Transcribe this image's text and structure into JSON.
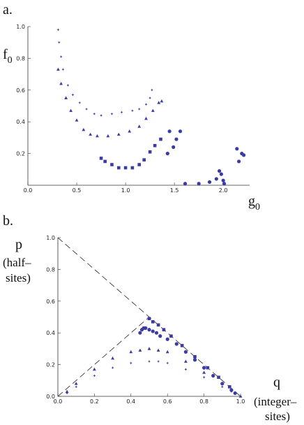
{
  "chart_data": [
    {
      "type": "scatter",
      "panel_label": "a.",
      "y_label": {
        "main": "f",
        "sub": "0"
      },
      "x_label": {
        "main": "g",
        "sub": "0"
      },
      "xlim": [
        0,
        2.27
      ],
      "ylim": [
        0,
        1.0
      ],
      "xticks": [
        {
          "value": 0,
          "label": "0.0"
        },
        0.5,
        {
          "value": 1,
          "label": "1.0"
        },
        1.5,
        {
          "value": 2,
          "label": "2.0"
        }
      ],
      "yticks": [
        0.2,
        0.4,
        0.6,
        0.8,
        {
          "value": 1,
          "label": "1.0"
        }
      ],
      "series": [
        {
          "marker": "star",
          "color": "#3b3ba6",
          "x": [
            0.31,
            0.32,
            0.34,
            0.36,
            0.41,
            0.46,
            0.53,
            0.6,
            0.68,
            0.75,
            0.86,
            0.96,
            1.07,
            1.14,
            1.21,
            1.25,
            1.27
          ],
          "y": [
            0.98,
            0.9,
            0.81,
            0.73,
            0.63,
            0.57,
            0.52,
            0.48,
            0.45,
            0.44,
            0.45,
            0.46,
            0.47,
            0.48,
            0.51,
            0.55,
            0.6
          ]
        },
        {
          "marker": "triangle",
          "color": "#3b3ba6",
          "x": [
            0.31,
            0.34,
            0.39,
            0.44,
            0.5,
            0.57,
            0.64,
            0.71,
            0.82,
            0.93,
            1.04,
            1.14,
            1.21,
            1.28,
            1.34,
            1.37
          ],
          "y": [
            0.73,
            0.64,
            0.55,
            0.47,
            0.41,
            0.35,
            0.32,
            0.31,
            0.31,
            0.32,
            0.34,
            0.37,
            0.42,
            0.47,
            0.52,
            0.53
          ]
        },
        {
          "marker": "square",
          "color": "#3b3ba6",
          "x": [
            0.75,
            0.79,
            0.86,
            0.93,
            1.0,
            1.07,
            1.14,
            1.19,
            1.25,
            1.3,
            1.36
          ],
          "y": [
            0.17,
            0.15,
            0.13,
            0.11,
            0.11,
            0.11,
            0.13,
            0.16,
            0.21,
            0.25,
            0.29
          ]
        },
        {
          "marker": "circle",
          "color": "#3b3ba6",
          "x": [
            1.45,
            1.56,
            1.52,
            1.49,
            1.43,
            1.61,
            1.75,
            1.86,
            1.93,
            1.96,
            2.0,
            1.98,
            2.01,
            2.14,
            2.16,
            2.21,
            2.19
          ],
          "y": [
            0.34,
            0.34,
            0.29,
            0.24,
            0.2,
            0.01,
            0.01,
            0.02,
            0.04,
            0.09,
            0.03,
            0.07,
            0.01,
            0.23,
            0.15,
            0.19,
            0.2
          ]
        }
      ]
    },
    {
      "type": "scatter",
      "panel_label": "b.",
      "y_label_lines": [
        "p",
        "(half–",
        "sites)"
      ],
      "x_label_lines": [
        "q",
        "(integer–",
        "sites)"
      ],
      "xlim": [
        0,
        1.0
      ],
      "ylim": [
        0,
        1.0
      ],
      "xticks": [
        {
          "value": 0,
          "label": "0.0"
        },
        0.2,
        0.4,
        0.6,
        0.8,
        {
          "value": 1,
          "label": "1.0"
        }
      ],
      "yticks": [
        {
          "value": 0,
          "label": "0.0"
        },
        0.2,
        0.4,
        0.6,
        0.8,
        {
          "value": 1,
          "label": "1.0"
        }
      ],
      "series": [
        {
          "marker": "dashed",
          "color": "#222222",
          "x": [
            0,
            1.0
          ],
          "y": [
            1.0,
            0
          ]
        },
        {
          "marker": "dashed",
          "color": "#222222",
          "x": [
            0,
            0.5
          ],
          "y": [
            0,
            0.5
          ]
        },
        {
          "marker": "circle",
          "color": "#3b3ba6",
          "x": [
            0.45,
            0.46,
            0.47,
            0.48,
            0.5,
            0.52,
            0.54,
            0.56,
            0.6,
            0.65,
            0.7,
            0.75,
            0.8,
            0.85,
            0.9,
            0.95,
            0.97
          ],
          "y": [
            0.4,
            0.42,
            0.43,
            0.43,
            0.42,
            0.41,
            0.4,
            0.38,
            0.36,
            0.33,
            0.28,
            0.23,
            0.18,
            0.13,
            0.08,
            0.04,
            0.02
          ]
        },
        {
          "marker": "square",
          "color": "#3b3ba6",
          "x": [
            0.5,
            0.52,
            0.55,
            0.58,
            0.62,
            0.68,
            0.75,
            0.82,
            0.88,
            0.94
          ],
          "y": [
            0.49,
            0.47,
            0.45,
            0.42,
            0.38,
            0.32,
            0.25,
            0.18,
            0.12,
            0.06
          ]
        },
        {
          "marker": "triangle",
          "color": "#3b3ba6",
          "x": [
            0.05,
            0.1,
            0.2,
            0.3,
            0.4,
            0.45,
            0.5,
            0.55,
            0.6,
            0.7,
            0.8,
            0.9,
            0.95,
            1.0
          ],
          "y": [
            0.03,
            0.08,
            0.17,
            0.24,
            0.28,
            0.29,
            0.3,
            0.29,
            0.28,
            0.22,
            0.15,
            0.08,
            0.04,
            0
          ]
        },
        {
          "marker": "star",
          "color": "#3b3ba6",
          "x": [
            0.05,
            0.1,
            0.2,
            0.3,
            0.4,
            0.5,
            0.55,
            0.6,
            0.7,
            0.8,
            0.9,
            0.95,
            1.0
          ],
          "y": [
            0.02,
            0.06,
            0.13,
            0.18,
            0.21,
            0.22,
            0.22,
            0.21,
            0.17,
            0.12,
            0.06,
            0.03,
            0
          ]
        }
      ]
    }
  ]
}
